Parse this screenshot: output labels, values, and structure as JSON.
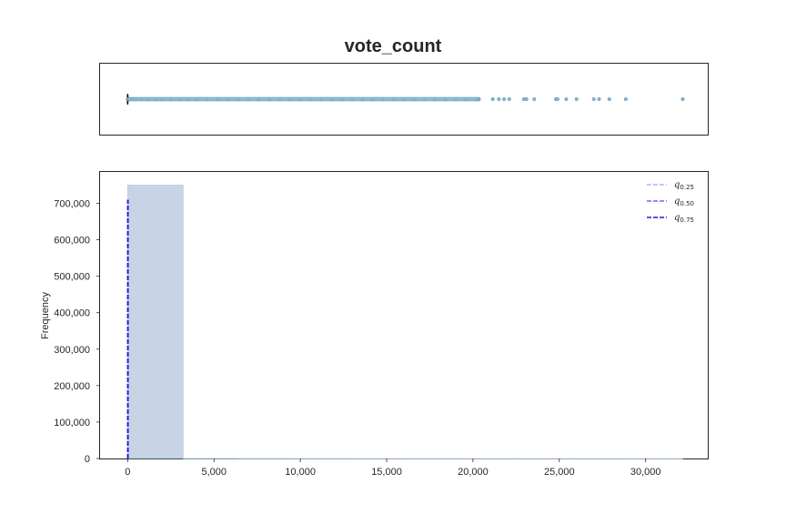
{
  "chart_data": [
    {
      "type": "box",
      "title": "vote_count",
      "xlim": [
        -1600,
        33600
      ],
      "box": {
        "q1": 0,
        "median": 0,
        "q3": 0,
        "whisker_low": 0,
        "whisker_high": 0
      },
      "outliers": [
        1,
        50,
        120,
        300,
        500,
        800,
        1200,
        1600,
        2000,
        2500,
        3000,
        3500,
        4000,
        4600,
        5200,
        5800,
        6400,
        7000,
        7600,
        8200,
        8800,
        9400,
        10000,
        10600,
        11200,
        11800,
        12400,
        13000,
        13600,
        14200,
        14800,
        15400,
        16000,
        16600,
        17200,
        17800,
        18400,
        19000,
        19600,
        20200,
        20350,
        21150,
        21500,
        21800,
        22100,
        22950,
        23100,
        23550,
        24800,
        24900,
        25400,
        26000,
        27000,
        27300,
        27900,
        28850,
        32150
      ],
      "colors": {
        "outlier": "#7fbad8",
        "outlier_edge": "#5b7f99",
        "median": "#000000"
      }
    },
    {
      "type": "histogram",
      "ylabel": "Frequency",
      "xlim": [
        -1600,
        33600
      ],
      "ylim": [
        0,
        786000
      ],
      "xticks": [
        0,
        5000,
        10000,
        15000,
        20000,
        25000,
        30000
      ],
      "xtick_labels": [
        "0",
        "5,000",
        "10,000",
        "15,000",
        "20,000",
        "25,000",
        "30,000"
      ],
      "yticks": [
        0,
        100000,
        200000,
        300000,
        400000,
        500000,
        600000,
        700000
      ],
      "ytick_labels": [
        "0",
        "100,000",
        "200,000",
        "300,000",
        "400,000",
        "500,000",
        "600,000",
        "700,000"
      ],
      "bins": [
        {
          "x0": 0,
          "x1": 3215,
          "count": 750000
        },
        {
          "x0": 3215,
          "x1": 6430,
          "count": 300
        },
        {
          "x0": 6430,
          "x1": 9645,
          "count": 120
        },
        {
          "x0": 9645,
          "x1": 12860,
          "count": 60
        },
        {
          "x0": 12860,
          "x1": 16075,
          "count": 40
        },
        {
          "x0": 16075,
          "x1": 19290,
          "count": 25
        },
        {
          "x0": 19290,
          "x1": 22505,
          "count": 12
        },
        {
          "x0": 22505,
          "x1": 25720,
          "count": 6
        },
        {
          "x0": 25720,
          "x1": 28935,
          "count": 5
        },
        {
          "x0": 28935,
          "x1": 32150,
          "count": 1
        }
      ],
      "quantile_lines": [
        {
          "label_main": "q",
          "label_sub": "0.25",
          "x": 0,
          "ymax": 710000,
          "color": "#b3b3ff",
          "opacity": 1
        },
        {
          "label_main": "q",
          "label_sub": "0.50",
          "x": 0,
          "ymax": 710000,
          "color": "#6666ff",
          "opacity": 1
        },
        {
          "label_main": "q",
          "label_sub": "0.75",
          "x": 0,
          "ymax": 710000,
          "color": "#1a1ad9",
          "opacity": 1
        }
      ],
      "legend_position": "top-right",
      "colors": {
        "bar": "#c8d4e6",
        "bar_edge": "#a7c1dc",
        "axis": "#262626"
      }
    }
  ]
}
